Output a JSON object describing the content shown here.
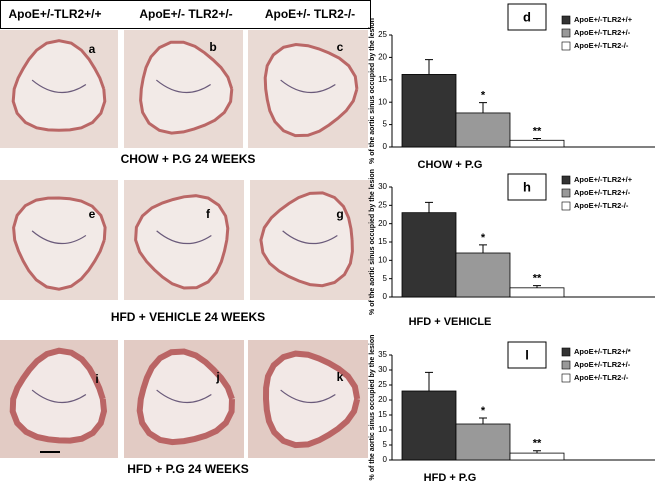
{
  "headers": [
    "ApoE+/-TLR2+/+",
    "ApoE+/- TLR2+/-",
    "ApoE+/- TLR2-/-"
  ],
  "row_captions": [
    "CHOW + P.G 24 WEEKS",
    "HFD + VEHICLE 24 WEEKS",
    "HFD + P.G 24 WEEKS"
  ],
  "panels": [
    "a",
    "b",
    "c",
    "e",
    "f",
    "g",
    "i",
    "j",
    "k"
  ],
  "chart_data": [
    {
      "type": "bar",
      "title": "d",
      "x_label": "CHOW + P.G",
      "y_label": "% of the aortic sinus occupied by the lesion",
      "ylim": [
        0,
        25
      ],
      "yticks": [
        0,
        5,
        10,
        15,
        20,
        25
      ],
      "legend": "upper right",
      "annotations": [
        "*",
        "**"
      ],
      "series": [
        {
          "name": "ApoE+/-TLR2+/+",
          "color": "#333333",
          "values": [
            16.2
          ],
          "errors": [
            3.3
          ]
        },
        {
          "name": "ApoE+/-TLR2+/-",
          "color": "#999999",
          "values": [
            7.6
          ],
          "errors": [
            2.3
          ]
        },
        {
          "name": "ApoE+/-TLR2-/-",
          "color": "#ffffff",
          "values": [
            1.5
          ],
          "errors": [
            0.4
          ]
        }
      ]
    },
    {
      "type": "bar",
      "title": "h",
      "x_label": "HFD + VEHICLE",
      "y_label": "% of the aortic sinus occupied by the lesion",
      "ylim": [
        0,
        30
      ],
      "yticks": [
        0,
        5,
        10,
        15,
        20,
        25,
        30
      ],
      "legend": "upper right",
      "annotations": [
        "*",
        "**"
      ],
      "series": [
        {
          "name": "ApoE+/-TLR2+/+",
          "color": "#333333",
          "values": [
            23
          ],
          "errors": [
            2.8
          ]
        },
        {
          "name": "ApoE+/-TLR2+/-",
          "color": "#999999",
          "values": [
            12
          ],
          "errors": [
            2.2
          ]
        },
        {
          "name": "ApoE+/-TLR2-/-",
          "color": "#ffffff",
          "values": [
            2.5
          ],
          "errors": [
            0.6
          ]
        }
      ]
    },
    {
      "type": "bar",
      "title": "l",
      "x_label": "HFD + P.G",
      "y_label": "% of the aortic sinus occupied by the lesion",
      "ylim": [
        0,
        35
      ],
      "yticks": [
        0,
        5,
        10,
        15,
        20,
        25,
        30,
        35
      ],
      "legend": "upper right",
      "annotations": [
        "*",
        "**"
      ],
      "series": [
        {
          "name": "ApoE+/-TLR2+/*",
          "color": "#333333",
          "values": [
            23
          ],
          "errors": [
            6.2
          ]
        },
        {
          "name": "ApoE+/-TLR2+/-",
          "color": "#999999",
          "values": [
            12
          ],
          "errors": [
            2
          ]
        },
        {
          "name": "ApoE+/-TLR2-/-",
          "color": "#ffffff",
          "values": [
            2.3
          ],
          "errors": [
            0.8
          ]
        }
      ]
    }
  ]
}
